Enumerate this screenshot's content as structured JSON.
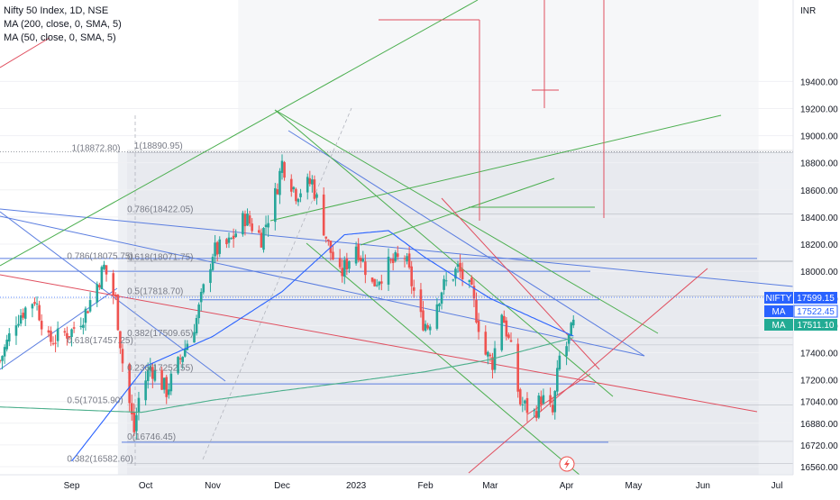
{
  "legend": {
    "symbol_line": "Nifty 50 Index, 1D, NSE",
    "ma200_line": "MA (200, close, 0, SMA, 5)",
    "ma50_line": "MA (50, close, 0, SMA, 5)"
  },
  "currency": "INR",
  "colors": {
    "up": "#26a69a",
    "down": "#ef5350",
    "ma200": "#4caf8c",
    "ma50": "#2962ff",
    "trend_blue": "#5b7ee0",
    "trend_green": "#4caf50",
    "trend_red": "#e04f5f",
    "price_tag": "#2962ff",
    "ma50_tag": "#2962ff",
    "ma200_tag": "#22ab94"
  },
  "price_tags": [
    {
      "label": "NIFTY",
      "value": "17599.15",
      "price": 17599.15,
      "color": "#2962ff"
    },
    {
      "label": "MA",
      "value": "17522.45",
      "price": 17522.45,
      "color": "#2962ff"
    },
    {
      "label": "MA",
      "value": "17511.10",
      "price": 17511.1,
      "color": "#22ab94"
    }
  ],
  "fib_labels": [
    {
      "text": "1(18872.80)",
      "price": 18872.8,
      "date": "2022-09-01"
    },
    {
      "text": "0.786(18422.05)",
      "price": 18422.05,
      "date": "2022-09-25"
    },
    {
      "text": "0.786(18075.75)",
      "price": 18075.75,
      "date": "2022-08-30"
    },
    {
      "text": "0.5(17818.70)",
      "price": 17818.7,
      "date": "2022-09-25"
    },
    {
      "text": "0.382(17509.65)",
      "price": 17509.65,
      "date": "2022-09-25"
    },
    {
      "text": "0.618(17457.25)",
      "price": 17457.25,
      "date": "2022-08-30"
    },
    {
      "text": "0.236(17252.55)",
      "price": 17252.55,
      "date": "2022-09-25"
    },
    {
      "text": "0.5(17015.90)",
      "price": 17015.9,
      "date": "2022-08-30"
    },
    {
      "text": "0(16746.45)",
      "price": 16746.45,
      "date": "2022-09-25"
    },
    {
      "text": "0.382(16582.60)",
      "price": 16582.6,
      "date": "2022-08-30"
    },
    {
      "text": "1(18890.95)",
      "price": 18890.95,
      "date": "2022-09-28"
    },
    {
      "text": "0.618(18071.75)",
      "price": 18071.75,
      "date": "2022-09-25"
    }
  ],
  "chart_data": {
    "type": "candlestick",
    "title": "Nifty 50 Index, 1D, NSE",
    "ylabel": "INR",
    "ylim": [
      16500,
      20000
    ],
    "xlim": [
      "2022-08-01",
      "2023-07-10"
    ],
    "y_ticks": [
      16560,
      16720,
      16880,
      17040,
      17200,
      17400,
      17600,
      17800,
      18000,
      18200,
      18400,
      18600,
      18800,
      19000,
      19200,
      19400
    ],
    "y_tick_labels": [
      "16560.00",
      "16720.00",
      "16880.00",
      "17040.00",
      "17200.00",
      "17400.00",
      "17600.00",
      "17800.00",
      "18000.00",
      "18200.00",
      "18400.00",
      "18600.00",
      "18800.00",
      "19000.00",
      "19200.00",
      "19400.00"
    ],
    "x_ticks": [
      {
        "label": "Sep",
        "date": "2022-09-01"
      },
      {
        "label": "Oct",
        "date": "2022-10-03"
      },
      {
        "label": "Nov",
        "date": "2022-11-01"
      },
      {
        "label": "Dec",
        "date": "2022-12-01"
      },
      {
        "label": "2023",
        "date": "2023-01-02"
      },
      {
        "label": "Feb",
        "date": "2023-02-01"
      },
      {
        "label": "Mar",
        "date": "2023-03-01"
      },
      {
        "label": "Apr",
        "date": "2023-04-03"
      },
      {
        "label": "May",
        "date": "2023-05-02"
      },
      {
        "label": "Jun",
        "date": "2023-06-01"
      },
      {
        "label": "Jul",
        "date": "2023-07-03"
      }
    ],
    "series_keypoints": [
      {
        "date": "2022-08-01",
        "close": 17340
      },
      {
        "date": "2022-08-08",
        "close": 17650
      },
      {
        "date": "2022-08-16",
        "close": 17800
      },
      {
        "date": "2022-08-22",
        "close": 17480
      },
      {
        "date": "2022-08-29",
        "close": 17540
      },
      {
        "date": "2022-09-01",
        "close": 17560
      },
      {
        "date": "2022-09-07",
        "close": 17700
      },
      {
        "date": "2022-09-15",
        "close": 18030
      },
      {
        "date": "2022-09-20",
        "close": 17780
      },
      {
        "date": "2022-09-23",
        "close": 17330
      },
      {
        "date": "2022-09-28",
        "close": 16820
      },
      {
        "date": "2022-09-30",
        "close": 17060
      },
      {
        "date": "2022-10-05",
        "close": 17300
      },
      {
        "date": "2022-10-12",
        "close": 17120
      },
      {
        "date": "2022-10-17",
        "close": 17310
      },
      {
        "date": "2022-10-25",
        "close": 17650
      },
      {
        "date": "2022-11-01",
        "close": 18140
      },
      {
        "date": "2022-11-08",
        "close": 18200
      },
      {
        "date": "2022-11-15",
        "close": 18400
      },
      {
        "date": "2022-11-22",
        "close": 18250
      },
      {
        "date": "2022-11-28",
        "close": 18560
      },
      {
        "date": "2022-12-01",
        "close": 18800
      },
      {
        "date": "2022-12-07",
        "close": 18580
      },
      {
        "date": "2022-12-14",
        "close": 18660
      },
      {
        "date": "2022-12-21",
        "close": 18190
      },
      {
        "date": "2022-12-26",
        "close": 17960
      },
      {
        "date": "2023-01-02",
        "close": 18200
      },
      {
        "date": "2023-01-09",
        "close": 17900
      },
      {
        "date": "2023-01-16",
        "close": 18040
      },
      {
        "date": "2023-01-23",
        "close": 18110
      },
      {
        "date": "2023-01-30",
        "close": 17650
      },
      {
        "date": "2023-02-02",
        "close": 17600
      },
      {
        "date": "2023-02-08",
        "close": 17870
      },
      {
        "date": "2023-02-15",
        "close": 18020
      },
      {
        "date": "2023-02-21",
        "close": 17830
      },
      {
        "date": "2023-02-27",
        "close": 17390
      },
      {
        "date": "2023-03-02",
        "close": 17330
      },
      {
        "date": "2023-03-06",
        "close": 17710
      },
      {
        "date": "2023-03-10",
        "close": 17410
      },
      {
        "date": "2023-03-14",
        "close": 17030
      },
      {
        "date": "2023-03-20",
        "close": 16950
      },
      {
        "date": "2023-03-23",
        "close": 17070
      },
      {
        "date": "2023-03-28",
        "close": 16950
      },
      {
        "date": "2023-03-31",
        "close": 17360
      },
      {
        "date": "2023-04-03",
        "close": 17450
      },
      {
        "date": "2023-04-06",
        "close": 17599.15
      }
    ],
    "ma200": [
      {
        "date": "2022-08-01",
        "value": 17000
      },
      {
        "date": "2022-10-01",
        "value": 16960
      },
      {
        "date": "2022-11-01",
        "value": 17050
      },
      {
        "date": "2022-12-01",
        "value": 17120
      },
      {
        "date": "2023-01-02",
        "value": 17190
      },
      {
        "date": "2023-02-01",
        "value": 17260
      },
      {
        "date": "2023-03-01",
        "value": 17350
      },
      {
        "date": "2023-04-06",
        "value": 17511.1
      }
    ],
    "ma50": [
      {
        "date": "2022-09-01",
        "value": 16600
      },
      {
        "date": "2022-10-03",
        "value": 17300
      },
      {
        "date": "2022-11-01",
        "value": 17520
      },
      {
        "date": "2022-12-01",
        "value": 17850
      },
      {
        "date": "2022-12-28",
        "value": 18270
      },
      {
        "date": "2023-01-16",
        "value": 18300
      },
      {
        "date": "2023-02-01",
        "value": 18100
      },
      {
        "date": "2023-03-01",
        "value": 17800
      },
      {
        "date": "2023-04-06",
        "value": 17522.45
      }
    ]
  }
}
